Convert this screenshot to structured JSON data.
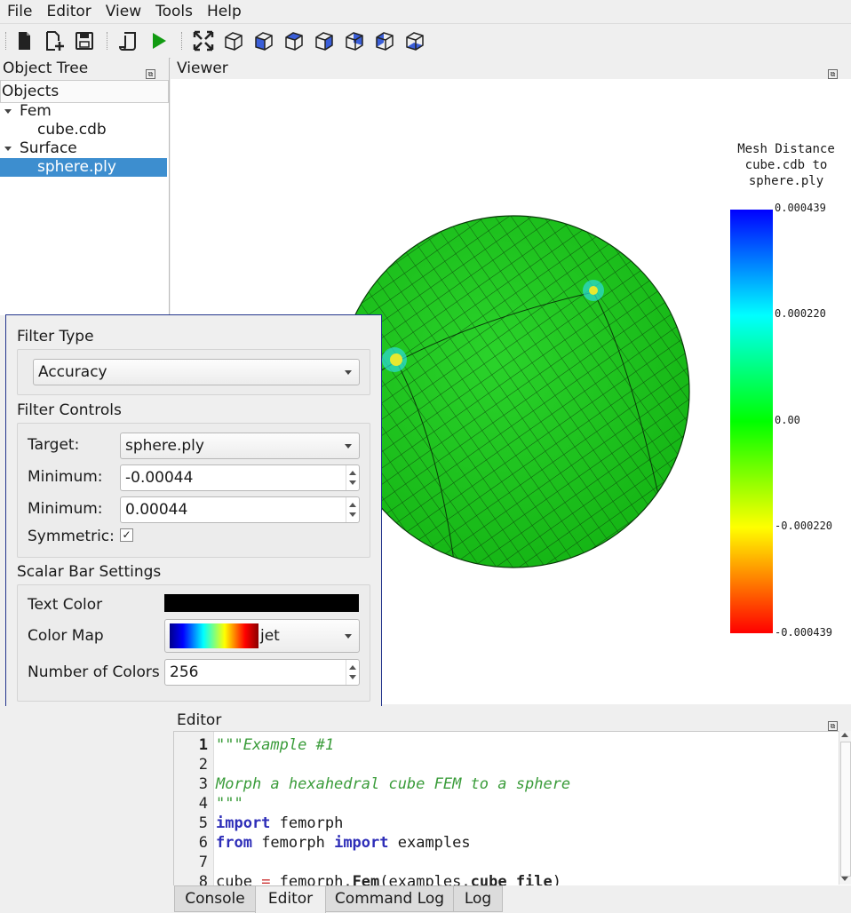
{
  "menu": [
    "File",
    "Editor",
    "View",
    "Tools",
    "Help"
  ],
  "toolbar_icons": [
    "new-file-icon",
    "add-file-icon",
    "save-icon",
    "script-icon",
    "run-icon",
    "fit-view-icon",
    "iso-view-icon",
    "front-view-icon",
    "top-view-icon",
    "right-view-icon",
    "back-view-icon",
    "left-view-icon",
    "bottom-view-icon"
  ],
  "object_tree": {
    "title": "Object Tree",
    "column_header": "Objects",
    "groups": [
      {
        "label": "Fem",
        "children": [
          "cube.cdb"
        ]
      },
      {
        "label": "Surface",
        "children": [
          "sphere.ply"
        ]
      }
    ],
    "selected": "sphere.ply"
  },
  "viewer": {
    "title": "Viewer",
    "scalar_bar": {
      "title_lines": [
        "Mesh Distance",
        "cube.cdb to",
        "sphere.ply"
      ],
      "tick_labels": [
        "0.000439",
        "0.000220",
        "0.00",
        "-0.000220",
        "-0.000439"
      ]
    }
  },
  "filter": {
    "filter_type_title": "Filter Type",
    "filter_type_value": "Accuracy",
    "controls_title": "Filter Controls",
    "target_label": "Target:",
    "target_value": "sphere.ply",
    "min_label": "Minimum:",
    "min_value": "-0.00044",
    "max_label": "Minimum:",
    "max_value": "0.00044",
    "symmetric_label": "Symmetric:",
    "symmetric_checked": "✓",
    "scalar_title": "Scalar Bar Settings",
    "text_color_label": "Text Color",
    "text_color": "#000000",
    "color_map_label": "Color Map",
    "color_map_value": "jet",
    "num_colors_label": "Number of Colors",
    "num_colors_value": "256"
  },
  "editor": {
    "title": "Editor",
    "line_numbers": [
      "1",
      "2",
      "3",
      "4",
      "5",
      "6",
      "7",
      "8"
    ],
    "lines": [
      [
        {
          "t": "\"\"\"Example #1",
          "c": "cm"
        }
      ],
      [],
      [
        {
          "t": "Morph a hexahedral cube FEM to a sphere",
          "c": "cm"
        }
      ],
      [
        {
          "t": "\"\"\"",
          "c": "cm"
        }
      ],
      [
        {
          "t": "import",
          "c": "kw"
        },
        {
          "t": " femorph",
          "c": ""
        }
      ],
      [
        {
          "t": "from",
          "c": "kw"
        },
        {
          "t": " femorph ",
          "c": ""
        },
        {
          "t": "import",
          "c": "kw"
        },
        {
          "t": " examples",
          "c": ""
        }
      ],
      [],
      [
        {
          "t": "cube ",
          "c": ""
        },
        {
          "t": "=",
          "c": "op"
        },
        {
          "t": " femorph.",
          "c": ""
        },
        {
          "t": "Fem",
          "c": "fn"
        },
        {
          "t": "(examples.",
          "c": ""
        },
        {
          "t": "cube_file",
          "c": "fn"
        },
        {
          "t": ")",
          "c": ""
        }
      ]
    ]
  },
  "bottom_tabs": [
    "Console",
    "Editor",
    "Command Log",
    "Log"
  ],
  "active_tab": "Editor"
}
